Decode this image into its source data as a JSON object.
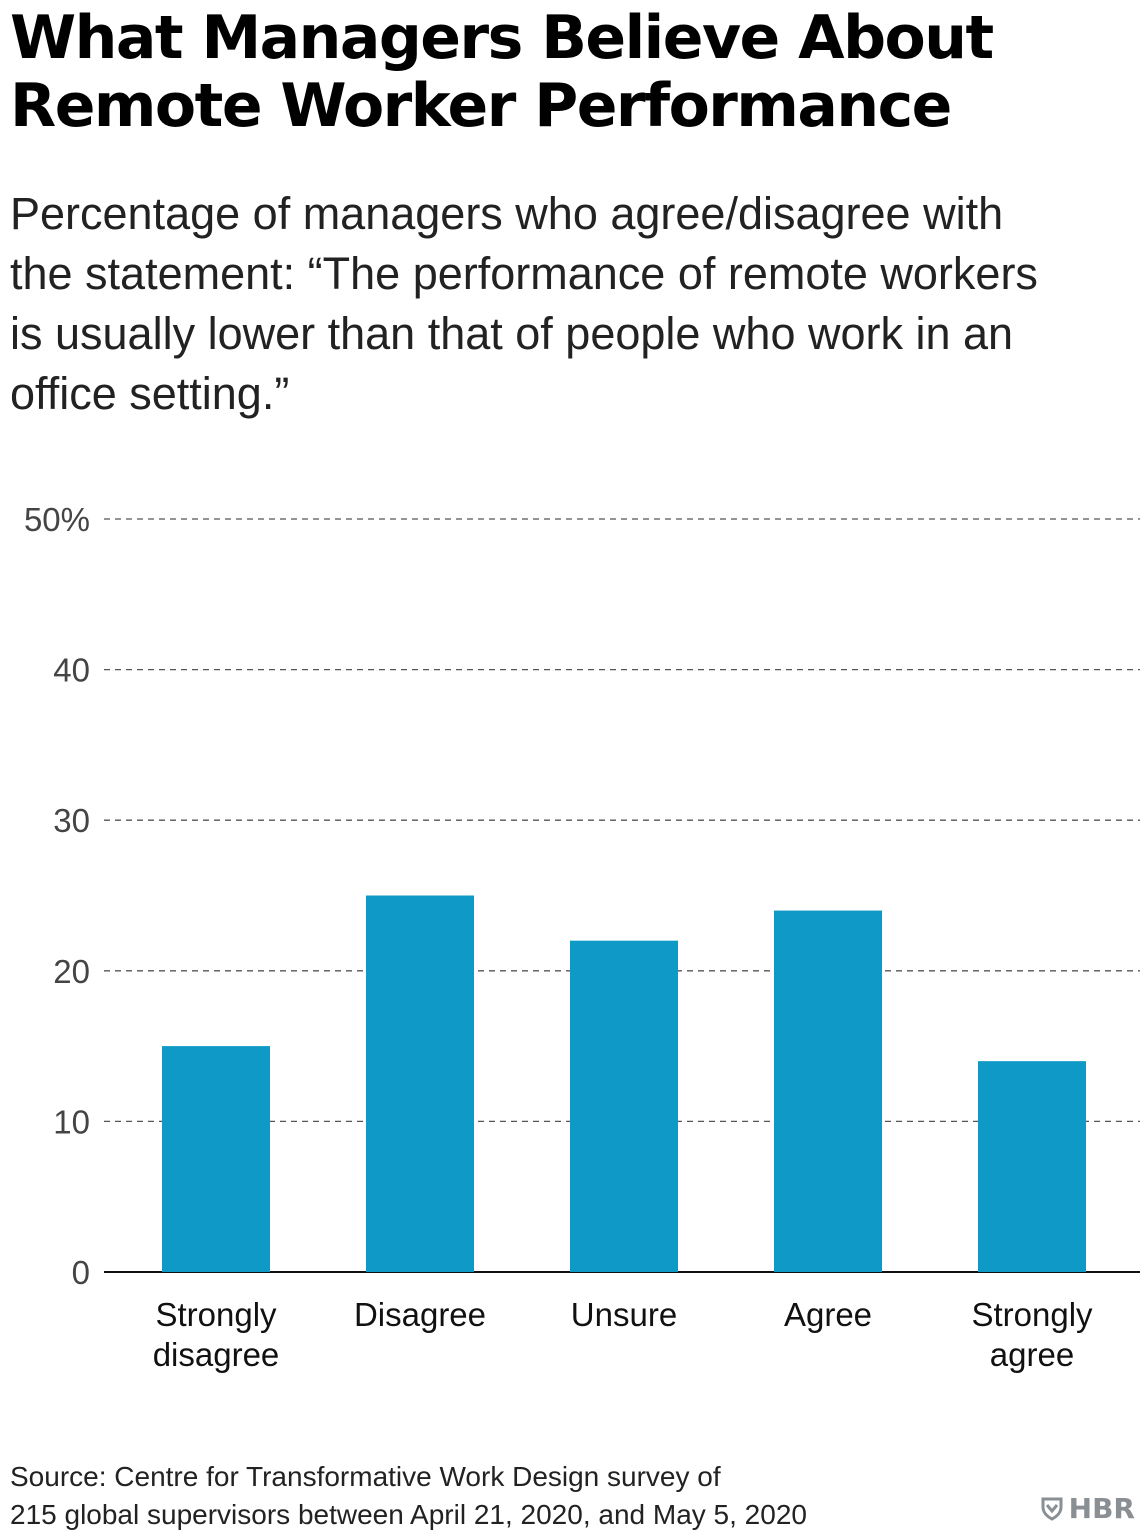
{
  "title_lines": [
    "What Managers Believe About",
    "Remote Worker Performance"
  ],
  "subtitle_lines": [
    "Percentage of managers who agree/disagree with",
    "the statement: “The performance of remote workers",
    "is usually lower than that of people who work in an",
    "office setting.”"
  ],
  "source_lines": [
    "Source: Centre for Transformative Work Design survey of",
    "215 global supervisors between April 21, 2020, and May 5, 2020"
  ],
  "logo_text": "HBR",
  "colors": {
    "bar": "#0f99c6",
    "grid": "#555555",
    "axis": "#111111",
    "logo": "#8a8f94"
  },
  "chart_data": {
    "type": "bar",
    "categories": [
      [
        "Strongly",
        "disagree"
      ],
      [
        "Disagree"
      ],
      [
        "Unsure"
      ],
      [
        "Agree"
      ],
      [
        "Strongly",
        "agree"
      ]
    ],
    "values": [
      15,
      25,
      22,
      24,
      14
    ],
    "ylim": [
      0,
      50
    ],
    "yticks": [
      0,
      10,
      20,
      30,
      40,
      50
    ],
    "ytick_labels": [
      "0",
      "10",
      "20",
      "30",
      "40",
      "50%"
    ],
    "grid": "dashed"
  }
}
